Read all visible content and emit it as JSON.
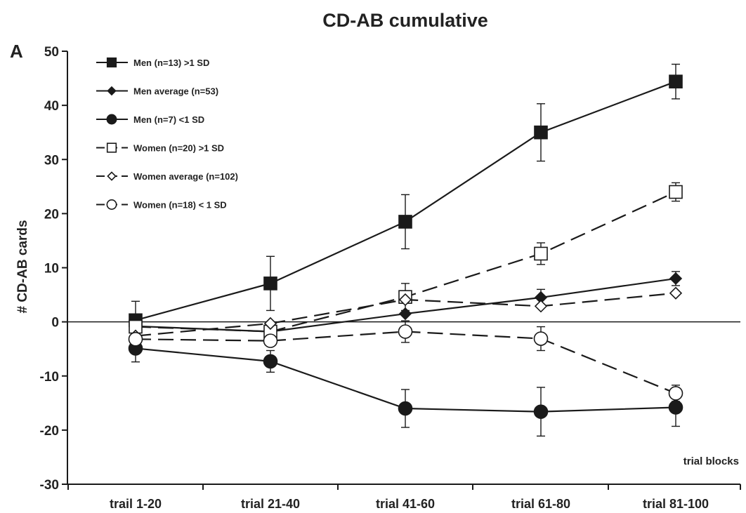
{
  "chart_data": {
    "type": "line",
    "title": "CD-AB cumulative",
    "panel_label": "A",
    "ylabel": "# CD-AB cards",
    "xlabel": "trial blocks",
    "categories": [
      "trail 1-20",
      "trial 21-40",
      "trial 41-60",
      "trial 61-80",
      "trial 81-100"
    ],
    "ylim": [
      -30,
      50
    ],
    "yticks": [
      50,
      40,
      30,
      20,
      10,
      0,
      -10,
      -20,
      -30
    ],
    "ytick_labels": [
      "50",
      "40",
      "30",
      "20",
      "10",
      "0",
      "-10",
      "-20",
      "-30"
    ],
    "grid": false,
    "zero_line": true,
    "legend_position": "top-left",
    "series": [
      {
        "name": "Men (n=13) >1 SD",
        "values": [
          0.3,
          7.1,
          18.5,
          35.0,
          44.4
        ],
        "errors": [
          3.5,
          5.0,
          5.0,
          5.3,
          3.2
        ],
        "marker": "square",
        "filled": true,
        "dashed": false,
        "size": "large"
      },
      {
        "name": "Men average (n=53)",
        "values": [
          -0.8,
          -1.8,
          1.5,
          4.5,
          8.0
        ],
        "errors": [
          0,
          0,
          0,
          1.5,
          1.3
        ],
        "marker": "diamond",
        "filled": true,
        "dashed": false,
        "size": "small"
      },
      {
        "name": "Men (n=7) <1 SD",
        "values": [
          -4.9,
          -7.3,
          -16.0,
          -16.6,
          -15.8
        ],
        "errors": [
          2.5,
          2.0,
          3.5,
          4.5,
          3.5
        ],
        "marker": "circle",
        "filled": true,
        "dashed": false,
        "size": "large"
      },
      {
        "name": "Women (n=20) >1 SD",
        "values": [
          -0.9,
          -1.8,
          4.6,
          12.6,
          24.0
        ],
        "errors": [
          0,
          0,
          2.5,
          2.0,
          1.7
        ],
        "marker": "square",
        "filled": false,
        "dashed": true,
        "size": "large"
      },
      {
        "name": "Women average (n=102)",
        "values": [
          -2.6,
          -0.3,
          4.1,
          2.9,
          5.3
        ],
        "errors": [
          0,
          0,
          0,
          0,
          0
        ],
        "marker": "diamond",
        "filled": false,
        "dashed": true,
        "size": "small"
      },
      {
        "name": "Women (n=18) < 1 SD",
        "values": [
          -3.2,
          -3.5,
          -1.8,
          -3.1,
          -13.2
        ],
        "errors": [
          0,
          0,
          2.0,
          2.2,
          1.5
        ],
        "marker": "circle",
        "filled": false,
        "dashed": true,
        "size": "large"
      }
    ]
  },
  "colors": {
    "ink": "#1a1a1a",
    "background": "#ffffff",
    "open_fill": "#ffffff"
  }
}
